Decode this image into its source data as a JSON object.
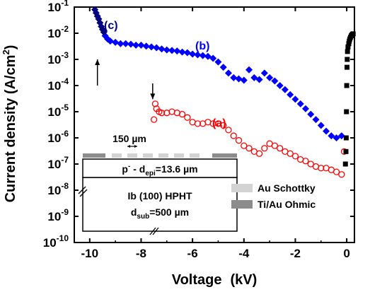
{
  "chart_data": {
    "type": "scatter",
    "xlabel": "Voltage",
    "xlabel_unit": "(kV)",
    "ylabel": "Current density (A/cm",
    "ylabel_sup": "2",
    "ylabel_end": ")",
    "xlim": [
      -10.6,
      0.3
    ],
    "ylim": [
      -10,
      -1
    ],
    "yscale": "log",
    "x_ticks": [
      -10,
      -8,
      -6,
      -4,
      -2,
      0
    ],
    "x_tick_labels": [
      "-10",
      "-8",
      "-6",
      "-4",
      "-2",
      "0"
    ],
    "y_tick_exponents": [
      -10,
      -9,
      -8,
      -7,
      -6,
      -5,
      -4,
      -3,
      -2,
      -1
    ],
    "y_tick_base": "10",
    "series": [
      {
        "label": "(a)",
        "color": "#ff0000",
        "marker": "open-circle",
        "x": [
          -7.5,
          -7.45,
          -7.4,
          -7.3,
          -7.2,
          -7.0,
          -6.8,
          -6.6,
          -6.4,
          -6.2,
          -6.0,
          -5.8,
          -5.6,
          -5.4,
          -5.2,
          -5.0,
          -4.8,
          -4.6,
          -4.4,
          -4.2,
          -4.0,
          -3.8,
          -3.6,
          -3.4,
          -3.2,
          -3.0,
          -2.8,
          -2.6,
          -2.4,
          -2.2,
          -2.0,
          -1.8,
          -1.6,
          -1.4,
          -1.2,
          -1.0,
          -0.8,
          -0.6,
          -0.4,
          -0.2,
          -0.1
        ],
        "y": [
          5e-06,
          2e-05,
          1.3e-05,
          1e-05,
          9e-06,
          9e-06,
          1e-05,
          9e-06,
          8e-06,
          6e-06,
          4e-06,
          3.5e-06,
          3.5e-06,
          4e-06,
          3.5e-06,
          3.5e-06,
          3e-06,
          2e-06,
          1.2e-06,
          8e-07,
          5e-07,
          4e-07,
          3e-07,
          2.5e-07,
          4e-07,
          6e-07,
          5e-07,
          4e-07,
          3e-07,
          2.5e-07,
          2e-07,
          1.5e-07,
          1.3e-07,
          1e-07,
          8e-08,
          7e-08,
          7e-08,
          6e-08,
          5e-08,
          4e-08,
          3e-07
        ]
      },
      {
        "label": "(b)",
        "color": "#0000ff",
        "marker": "diamond",
        "x": [
          -9.4,
          -9.3,
          -9.2,
          -9.0,
          -8.8,
          -8.6,
          -8.4,
          -8.2,
          -8.0,
          -7.8,
          -7.6,
          -7.4,
          -7.2,
          -7.0,
          -6.8,
          -6.6,
          -6.4,
          -6.2,
          -6.0,
          -5.8,
          -5.6,
          -5.4,
          -5.2,
          -5.0,
          -4.8,
          -4.6,
          -4.4,
          -4.2,
          -4.0,
          -3.8,
          -3.6,
          -3.4,
          -3.2,
          -3.0,
          -2.8,
          -2.6,
          -2.4,
          -2.2,
          -2.0,
          -1.8,
          -1.6,
          -1.4,
          -1.2,
          -1.0,
          -0.8,
          -0.6,
          -0.4,
          -0.2
        ],
        "y": [
          0.008,
          0.006,
          0.005,
          0.0045,
          0.004,
          0.004,
          0.0038,
          0.0035,
          0.0035,
          0.0032,
          0.003,
          0.0028,
          0.0025,
          0.0023,
          0.0022,
          0.0021,
          0.0019,
          0.0018,
          0.0016,
          0.0015,
          0.0014,
          0.0013,
          0.0011,
          0.0008,
          0.0005,
          0.0003,
          0.0002,
          0.00018,
          0.00016,
          0.0004,
          0.0002,
          0.00017,
          0.0003,
          0.0002,
          0.00015,
          0.0001,
          7e-05,
          4.5e-05,
          3e-05,
          2e-05,
          1.3e-05,
          8e-06,
          5e-06,
          3e-06,
          1.8e-06,
          1.2e-06,
          1e-06,
          1.2e-06
        ]
      },
      {
        "label": "(c)",
        "color": "#000080",
        "marker": "diamond",
        "x": [
          -9.8,
          -9.75,
          -9.7,
          -9.65,
          -9.6,
          -9.55,
          -9.5,
          -9.45
        ],
        "y": [
          0.08,
          0.06,
          0.045,
          0.035,
          0.025,
          0.018,
          0.014,
          0.011
        ]
      },
      {
        "label": "",
        "color": "#000000",
        "marker": "square",
        "x": [
          -0.05,
          -0.03,
          -0.02,
          -0.01,
          0.0,
          0.01,
          0.02,
          0.03,
          0.05,
          0.08,
          0.1,
          0.12,
          0.15,
          0.18,
          0.2,
          0.22,
          0.25
        ],
        "y": [
          1e-07,
          3e-07,
          1e-06,
          1e-05,
          0.0001,
          0.0005,
          0.001,
          0.002,
          0.003,
          0.004,
          0.005,
          0.006,
          0.007,
          0.008,
          0.0085,
          0.009,
          0.0095
        ]
      }
    ],
    "arrows": [
      {
        "x": -9.7,
        "y_from": 0.0001,
        "y_to": 0.001,
        "direction": "up"
      },
      {
        "x": -7.55,
        "y_from": 0.00012,
        "y_to": 3e-05,
        "direction": "down"
      }
    ],
    "inset": {
      "spacing_label": "150 µm",
      "layer_text": "p",
      "layer_text_sup": "-",
      "layer_text_mid": " - d",
      "layer_text_sub": "epi",
      "layer_text_end": "=13.6 µm",
      "substrate_line1": "Ib (100) HPHT",
      "substrate_line2_main": "d",
      "substrate_line2_sub": "sub",
      "substrate_line2_end": "=500 µm"
    },
    "legend": [
      {
        "label": "Au Schottky",
        "color": "#d3d3d3"
      },
      {
        "label": "Ti/Au Ohmic",
        "color": "#8c8c8c"
      }
    ]
  }
}
